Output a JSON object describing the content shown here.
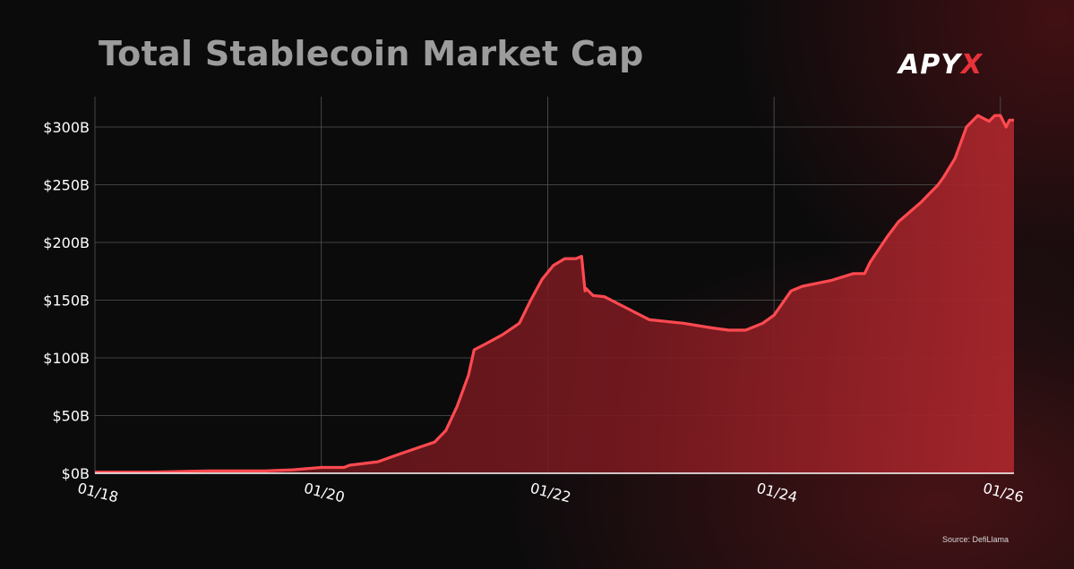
{
  "header": {
    "title": "Total Stablecoin Market Cap",
    "logo_main": "APY",
    "logo_accent": "X"
  },
  "footer": {
    "source": "Source: DefiLlama"
  },
  "colors": {
    "line": "#ff4a50",
    "fill": "#8a1e24",
    "grid": "#555555",
    "background": "#0b0b0c"
  },
  "chart_data": {
    "type": "area",
    "title": "Total Stablecoin Market Cap",
    "xlabel": "",
    "ylabel": "",
    "grid": true,
    "legend": "none",
    "xlim": [
      2018.0,
      2026.12
    ],
    "ylim": [
      0,
      300
    ],
    "y_ticks": [
      0,
      50,
      100,
      150,
      200,
      250,
      300
    ],
    "y_tick_labels": [
      "$0B",
      "$50B",
      "$100B",
      "$150B",
      "$200B",
      "$250B",
      "$300B"
    ],
    "x_ticks": [
      2018,
      2020,
      2022,
      2024,
      2026
    ],
    "x_tick_labels": [
      "01/18",
      "01/20",
      "01/22",
      "01/24",
      "01/26"
    ],
    "series": [
      {
        "x": [
          2018.0,
          2018.5,
          2019.0,
          2019.5,
          2019.75,
          2020.0,
          2020.2,
          2020.25,
          2020.5,
          2020.7,
          2020.85,
          2021.0,
          2021.1,
          2021.2,
          2021.3,
          2021.35,
          2021.45,
          2021.6,
          2021.75,
          2021.85,
          2021.95,
          2022.05,
          2022.15,
          2022.25,
          2022.3,
          2022.33,
          2022.34,
          2022.4,
          2022.5,
          2022.7,
          2022.9,
          2023.2,
          2023.45,
          2023.6,
          2023.75,
          2023.9,
          2024.0,
          2024.15,
          2024.25,
          2024.5,
          2024.7,
          2024.8,
          2024.85,
          2025.0,
          2025.1,
          2025.3,
          2025.45,
          2025.5,
          2025.6,
          2025.7,
          2025.8,
          2025.9,
          2025.95,
          2026.0,
          2026.05,
          2026.08,
          2026.12
        ],
        "y": [
          1,
          1,
          2,
          2,
          3,
          5,
          5,
          7,
          10,
          17,
          22,
          27,
          37,
          58,
          85,
          107,
          112,
          120,
          130,
          150,
          168,
          180,
          186,
          186,
          188,
          158,
          160,
          154,
          153,
          143,
          133,
          130,
          126,
          124,
          124,
          130,
          137,
          158,
          162,
          167,
          173,
          173,
          183,
          205,
          218,
          235,
          250,
          257,
          273,
          300,
          310,
          305,
          310,
          310,
          300,
          306,
          306
        ]
      }
    ]
  }
}
